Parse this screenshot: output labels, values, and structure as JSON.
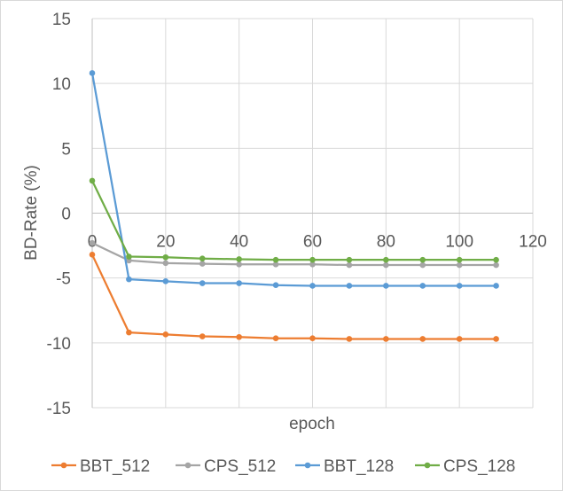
{
  "chart_data": {
    "type": "line",
    "title": "",
    "xlabel": "epoch",
    "ylabel": "BD-Rate (%)",
    "xlim": [
      0,
      120
    ],
    "ylim": [
      -15,
      15
    ],
    "xticks": [
      0,
      20,
      40,
      60,
      80,
      100,
      120
    ],
    "yticks": [
      15,
      10,
      5,
      0,
      -5,
      -10,
      -15
    ],
    "grid": true,
    "legend_position": "bottom",
    "x": [
      0,
      10,
      20,
      30,
      40,
      50,
      60,
      70,
      80,
      90,
      100,
      110
    ],
    "series": [
      {
        "name": "BBT_512",
        "color": "#ED7D31",
        "values": [
          -3.2,
          -9.2,
          -9.35,
          -9.5,
          -9.55,
          -9.65,
          -9.65,
          -9.7,
          -9.7,
          -9.7,
          -9.7,
          -9.7
        ]
      },
      {
        "name": "CPS_512",
        "color": "#A5A5A5",
        "values": [
          -2.3,
          -3.65,
          -3.85,
          -3.9,
          -3.95,
          -3.95,
          -3.95,
          -4.0,
          -4.0,
          -4.0,
          -4.0,
          -4.0
        ]
      },
      {
        "name": "BBT_128",
        "color": "#5B9BD5",
        "values": [
          10.8,
          -5.1,
          -5.25,
          -5.4,
          -5.4,
          -5.55,
          -5.6,
          -5.6,
          -5.6,
          -5.6,
          -5.6,
          -5.6
        ]
      },
      {
        "name": "CPS_128",
        "color": "#70AD47",
        "values": [
          2.5,
          -3.35,
          -3.4,
          -3.5,
          -3.55,
          -3.6,
          -3.6,
          -3.6,
          -3.6,
          -3.6,
          -3.6,
          -3.6
        ]
      }
    ]
  }
}
